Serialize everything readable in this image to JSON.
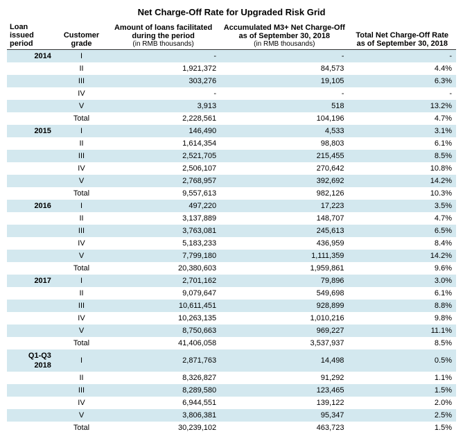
{
  "title": "Net Charge-Off Rate for Upgraded Risk Grid",
  "columns": {
    "period": {
      "l1": "Loan",
      "l2": "issued",
      "l3": "period"
    },
    "grade": {
      "l1": "Customer",
      "l2": "grade"
    },
    "amount": {
      "l1": "Amount of loans facilitated",
      "l2": "during the period",
      "sub": "(in RMB thousands)"
    },
    "accum": {
      "l1": "Accumulated M3+ Net Charge-Off",
      "l2": "as of September 30, 2018",
      "sub": "(in RMB thousands)"
    },
    "rate": {
      "l1": "Total Net Charge-Off Rate",
      "l2": "as of September 30, 2018"
    }
  },
  "rows": [
    {
      "band": true,
      "period": "2014",
      "grade": "I",
      "amount": "-",
      "accum": "-",
      "rate": "-"
    },
    {
      "band": false,
      "period": "",
      "grade": "II",
      "amount": "1,921,372",
      "accum": "84,573",
      "rate": "4.4%"
    },
    {
      "band": true,
      "period": "",
      "grade": "III",
      "amount": "303,276",
      "accum": "19,105",
      "rate": "6.3%"
    },
    {
      "band": false,
      "period": "",
      "grade": "IV",
      "amount": "-",
      "accum": "-",
      "rate": "-"
    },
    {
      "band": true,
      "period": "",
      "grade": "V",
      "amount": "3,913",
      "accum": "518",
      "rate": "13.2%"
    },
    {
      "band": false,
      "period": "",
      "grade": "Total",
      "amount": "2,228,561",
      "accum": "104,196",
      "rate": "4.7%"
    },
    {
      "band": true,
      "period": "2015",
      "grade": "I",
      "amount": "146,490",
      "accum": "4,533",
      "rate": "3.1%"
    },
    {
      "band": false,
      "period": "",
      "grade": "II",
      "amount": "1,614,354",
      "accum": "98,803",
      "rate": "6.1%"
    },
    {
      "band": true,
      "period": "",
      "grade": "III",
      "amount": "2,521,705",
      "accum": "215,455",
      "rate": "8.5%"
    },
    {
      "band": false,
      "period": "",
      "grade": "IV",
      "amount": "2,506,107",
      "accum": "270,642",
      "rate": "10.8%"
    },
    {
      "band": true,
      "period": "",
      "grade": "V",
      "amount": "2,768,957",
      "accum": "392,692",
      "rate": "14.2%"
    },
    {
      "band": false,
      "period": "",
      "grade": "Total",
      "amount": "9,557,613",
      "accum": "982,126",
      "rate": "10.3%"
    },
    {
      "band": true,
      "period": "2016",
      "grade": "I",
      "amount": "497,220",
      "accum": "17,223",
      "rate": "3.5%"
    },
    {
      "band": false,
      "period": "",
      "grade": "II",
      "amount": "3,137,889",
      "accum": "148,707",
      "rate": "4.7%"
    },
    {
      "band": true,
      "period": "",
      "grade": "III",
      "amount": "3,763,081",
      "accum": "245,613",
      "rate": "6.5%"
    },
    {
      "band": false,
      "period": "",
      "grade": "IV",
      "amount": "5,183,233",
      "accum": "436,959",
      "rate": "8.4%"
    },
    {
      "band": true,
      "period": "",
      "grade": "V",
      "amount": "7,799,180",
      "accum": "1,111,359",
      "rate": "14.2%"
    },
    {
      "band": false,
      "period": "",
      "grade": "Total",
      "amount": "20,380,603",
      "accum": "1,959,861",
      "rate": "9.6%"
    },
    {
      "band": true,
      "period": "2017",
      "grade": "I",
      "amount": "2,701,162",
      "accum": "79,896",
      "rate": "3.0%"
    },
    {
      "band": false,
      "period": "",
      "grade": "II",
      "amount": "9,079,647",
      "accum": "549,698",
      "rate": "6.1%"
    },
    {
      "band": true,
      "period": "",
      "grade": "III",
      "amount": "10,611,451",
      "accum": "928,899",
      "rate": "8.8%"
    },
    {
      "band": false,
      "period": "",
      "grade": "IV",
      "amount": "10,263,135",
      "accum": "1,010,216",
      "rate": "9.8%"
    },
    {
      "band": true,
      "period": "",
      "grade": "V",
      "amount": "8,750,663",
      "accum": "969,227",
      "rate": "11.1%"
    },
    {
      "band": false,
      "period": "",
      "grade": "Total",
      "amount": "41,406,058",
      "accum": "3,537,937",
      "rate": "8.5%"
    },
    {
      "band": true,
      "period": "Q1-Q3 2018",
      "grade": "I",
      "amount": "2,871,763",
      "accum": "14,498",
      "rate": "0.5%"
    },
    {
      "band": false,
      "period": "",
      "grade": "II",
      "amount": "8,326,827",
      "accum": "91,292",
      "rate": "1.1%"
    },
    {
      "band": true,
      "period": "",
      "grade": "III",
      "amount": "8,289,580",
      "accum": "123,465",
      "rate": "1.5%"
    },
    {
      "band": false,
      "period": "",
      "grade": "IV",
      "amount": "6,944,551",
      "accum": "139,122",
      "rate": "2.0%"
    },
    {
      "band": true,
      "period": "",
      "grade": "V",
      "amount": "3,806,381",
      "accum": "95,347",
      "rate": "2.5%"
    },
    {
      "band": false,
      "period": "",
      "grade": "Total",
      "amount": "30,239,102",
      "accum": "463,723",
      "rate": "1.5%"
    }
  ]
}
